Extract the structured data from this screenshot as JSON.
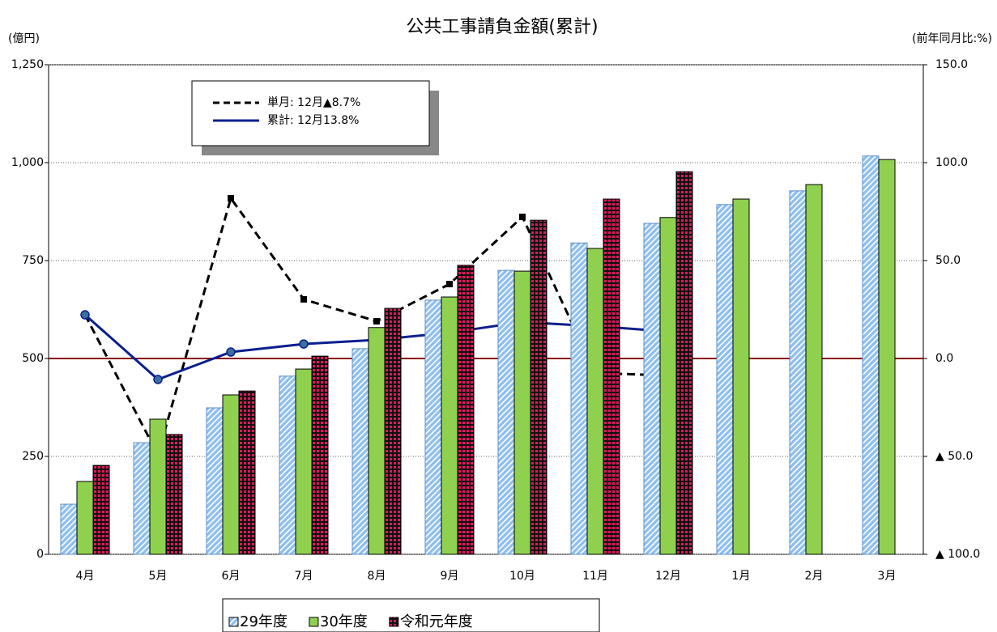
{
  "chart_data": {
    "type": "bar",
    "title": "公共工事請負金額(累計)",
    "y_label": "(億円)",
    "y2_label": "(前年同月比:%)",
    "categories": [
      "4月",
      "5月",
      "6月",
      "7月",
      "8月",
      "9月",
      "10月",
      "11月",
      "12月",
      "1月",
      "2月",
      "3月"
    ],
    "ylim": [
      0,
      1250
    ],
    "yticks": [
      0,
      250,
      500,
      750,
      {
        "value": 1000,
        "label": "1,000"
      },
      {
        "value": 1250,
        "label": "1,250"
      }
    ],
    "y2lim": [
      -100,
      150
    ],
    "y2ticks": [
      {
        "value": -100,
        "label": "▲ 100.0"
      },
      {
        "value": -50,
        "label": "▲ 50.0"
      },
      {
        "value": 0,
        "label": "0.0"
      },
      {
        "value": 50,
        "label": "50.0"
      },
      {
        "value": 100,
        "label": "100.0"
      },
      {
        "value": 150,
        "label": "150.0"
      }
    ],
    "grid": true,
    "series": [
      {
        "name": "29年度",
        "type": "bar",
        "color": "#8fbfef",
        "values": [
          128,
          285,
          374,
          455,
          525,
          649,
          725,
          795,
          845,
          893,
          928,
          1017
        ]
      },
      {
        "name": "30年度",
        "type": "bar",
        "color": "#8fd14f",
        "values": [
          186,
          345,
          407,
          473,
          579,
          657,
          723,
          781,
          860,
          907,
          944,
          1008
        ]
      },
      {
        "name": "令和元年度",
        "type": "bar",
        "color": "#e0185a",
        "values": [
          227,
          306,
          417,
          506,
          628,
          738,
          853,
          907,
          977,
          null,
          null,
          null
        ]
      },
      {
        "name": "単月: 12月▲8.7%",
        "type": "line",
        "axis": "y2",
        "style": "dashed",
        "color": "#000000",
        "values": [
          22.3,
          -49.2,
          81.8,
          30.2,
          19.0,
          38.0,
          72.3,
          -7.4,
          -8.7,
          null,
          null,
          null
        ]
      },
      {
        "name": "累計: 12月13.8%",
        "type": "line",
        "axis": "y2",
        "style": "solid",
        "color": "#0a1f8f",
        "values": [
          22.3,
          -10.7,
          3.3,
          7.4,
          9.5,
          13.2,
          18.6,
          16.5,
          13.8,
          null,
          null,
          null
        ]
      }
    ]
  }
}
